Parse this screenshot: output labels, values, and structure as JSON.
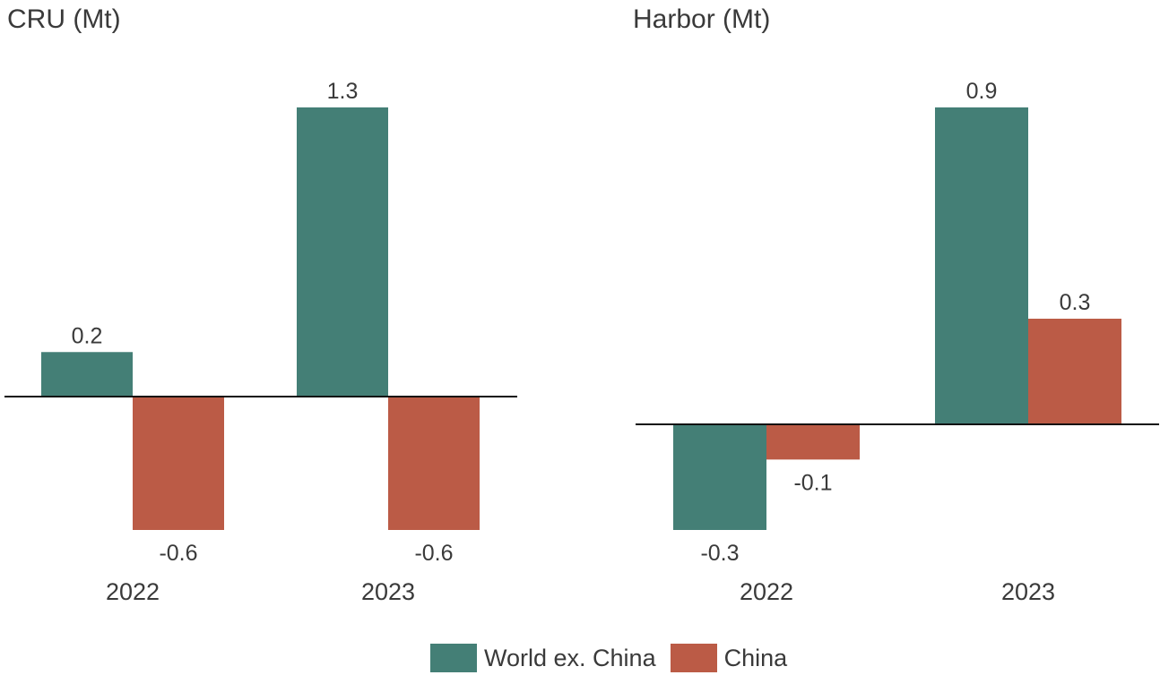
{
  "colors": {
    "world": "#447f76",
    "china": "#bb5b46"
  },
  "legend": [
    {
      "label": "World ex. China",
      "color": "#447f76"
    },
    {
      "label": "China",
      "color": "#bb5b46"
    }
  ],
  "chart_data": [
    {
      "type": "bar",
      "title": "CRU (Mt)",
      "categories": [
        "2022",
        "2023"
      ],
      "series": [
        {
          "name": "World ex. China",
          "values": [
            0.2,
            1.3
          ]
        },
        {
          "name": "China",
          "values": [
            -0.6,
            -0.6
          ]
        }
      ],
      "ylim": [
        -0.6,
        1.3
      ],
      "grid": false,
      "legend_position": "bottom"
    },
    {
      "type": "bar",
      "title": "Harbor (Mt)",
      "categories": [
        "2022",
        "2023"
      ],
      "series": [
        {
          "name": "World ex. China",
          "values": [
            -0.3,
            0.9
          ]
        },
        {
          "name": "China",
          "values": [
            -0.1,
            0.3
          ]
        }
      ],
      "ylim": [
        -0.3,
        0.9
      ],
      "grid": false,
      "legend_position": "bottom"
    }
  ]
}
